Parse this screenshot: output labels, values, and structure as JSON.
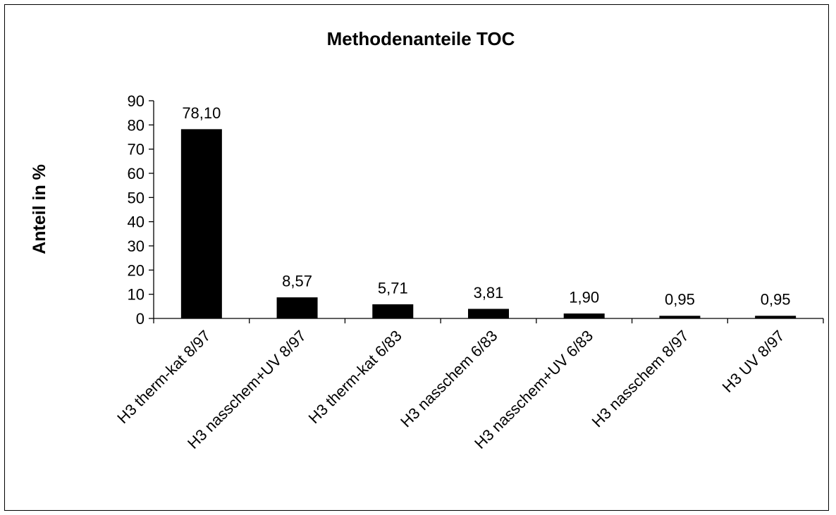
{
  "chart_data": {
    "type": "bar",
    "title": "Methodenanteile TOC",
    "xlabel": "",
    "ylabel": "Anteil in %",
    "ylim": [
      0,
      90
    ],
    "yticks": [
      0,
      10,
      20,
      30,
      40,
      50,
      60,
      70,
      80,
      90
    ],
    "categories": [
      "H3 therm-kat 8/97",
      "H3 nasschem+UV 8/97",
      "H3 therm-kat 6/83",
      "H3 nasschem 6/83",
      "H3 nasschem+UV 6/83",
      "H3 nasschem 8/97",
      "H3 UV 8/97"
    ],
    "values": [
      78.1,
      8.57,
      5.71,
      3.81,
      1.9,
      0.95,
      0.95
    ],
    "data_labels": [
      "78,10",
      "8,57",
      "5,71",
      "3,81",
      "1,90",
      "0,95",
      "0,95"
    ],
    "bar_color": "#000000",
    "grid": false,
    "legend": "none"
  }
}
